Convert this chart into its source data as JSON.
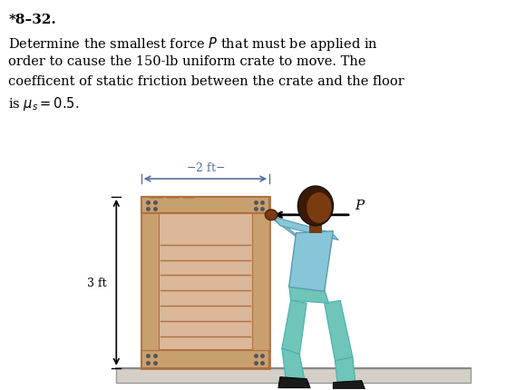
{
  "title": "*8–32.",
  "line1": "Determine the smallest force $P$ that must be applied in",
  "line2": "order to cause the 150-lb uniform crate to move. The",
  "line3": "coefficent of static friction between the crate and the floor",
  "line4": "is $\\mu_s = 0.5$.",
  "height_label": "3 ft",
  "force_label": "P",
  "bg_color": "#ffffff",
  "crate_face": "#dbb89a",
  "crate_border": "#c49060",
  "crate_dark": "#b07040",
  "crate_frame": "#c8a070",
  "person_shirt": "#87c5d8",
  "person_pants": "#6ec5b8",
  "person_skin": "#7a3b10",
  "person_dark": "#3a1a05",
  "person_shoe": "#1a1a1a",
  "floor_color": "#d4d0c8",
  "dim_color": "#5a6ea0"
}
